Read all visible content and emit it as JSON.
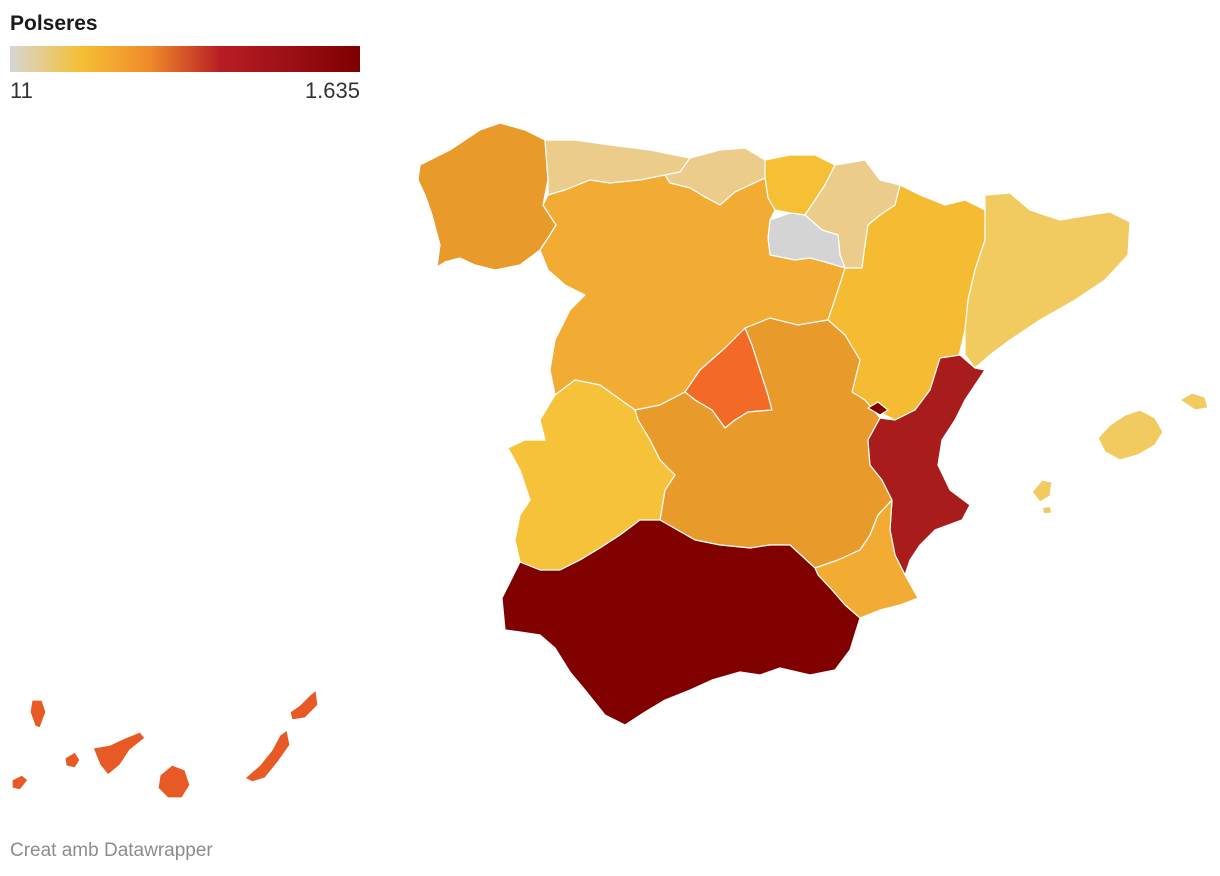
{
  "legend": {
    "title": "Polseres",
    "min_label": "11",
    "max_label": "1.635",
    "stops": [
      "#d6d6d6",
      "#f5c035",
      "#f08a2a",
      "#b81e24",
      "#9c0f16",
      "#7d0000"
    ]
  },
  "footer": {
    "credit": "Creat amb Datawrapper"
  },
  "regions": [
    {
      "id": "galicia",
      "color": "#e89a2a"
    },
    {
      "id": "asturias",
      "color": "#ebcc8a"
    },
    {
      "id": "cantabria",
      "color": "#ebcc8a"
    },
    {
      "id": "pais-vasco",
      "color": "#f5c035"
    },
    {
      "id": "navarra",
      "color": "#ebcc8a"
    },
    {
      "id": "la-rioja",
      "color": "#d4d4d4"
    },
    {
      "id": "castilla-leon",
      "color": "#f2ab33"
    },
    {
      "id": "aragon",
      "color": "#f5bc33"
    },
    {
      "id": "catalunya",
      "color": "#f2cb60"
    },
    {
      "id": "madrid",
      "color": "#f26a25"
    },
    {
      "id": "castilla-la-mancha",
      "color": "#e89a2a"
    },
    {
      "id": "extremadura",
      "color": "#f5c23a"
    },
    {
      "id": "comunitat-valenciana",
      "color": "#a81c1c"
    },
    {
      "id": "murcia",
      "color": "#f2ab33"
    },
    {
      "id": "andalucia",
      "color": "#800000"
    },
    {
      "id": "illes-balears",
      "color": "#f2cb60"
    },
    {
      "id": "canarias",
      "color": "#e85a25"
    }
  ]
}
